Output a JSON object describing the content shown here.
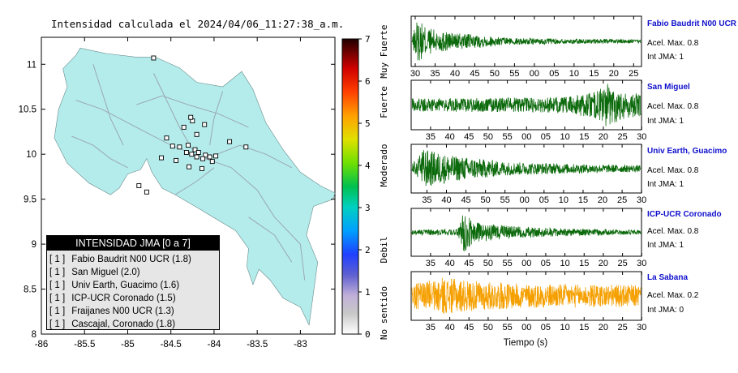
{
  "colors": {
    "land": "#b4ecec",
    "sea": "#ffffff",
    "roads": "#9aa8b0",
    "trace_green": "#0c6a0c",
    "trace_orange": "#f5a000",
    "station_name": "#1010cc"
  },
  "chart_data": [
    {
      "type": "map",
      "title": "Intensidad calculada el 2024/04/06_11:27:38_a.m.",
      "xlim": [
        -86,
        -82.6
      ],
      "ylim": [
        8,
        11.3
      ],
      "xticks": [
        -86,
        -85.5,
        -85,
        -84.5,
        -84,
        -83.5,
        -83
      ],
      "yticks": [
        8,
        8.5,
        9,
        9.5,
        10,
        10.5,
        11
      ],
      "stations": [
        {
          "lon": -84.25,
          "lat": 10.37
        },
        {
          "lon": -84.11,
          "lat": 10.33
        },
        {
          "lon": -84.2,
          "lat": 10.22
        },
        {
          "lon": -84.35,
          "lat": 10.3
        },
        {
          "lon": -84.55,
          "lat": 10.18
        },
        {
          "lon": -83.82,
          "lat": 10.14
        },
        {
          "lon": -83.63,
          "lat": 10.08
        },
        {
          "lon": -84.48,
          "lat": 10.09
        },
        {
          "lon": -84.4,
          "lat": 10.08
        },
        {
          "lon": -84.3,
          "lat": 10.1
        },
        {
          "lon": -84.22,
          "lat": 10.05
        },
        {
          "lon": -84.18,
          "lat": 10.02
        },
        {
          "lon": -84.1,
          "lat": 9.99
        },
        {
          "lon": -84.05,
          "lat": 9.97
        },
        {
          "lon": -84.02,
          "lat": 9.92
        },
        {
          "lon": -83.98,
          "lat": 9.98
        },
        {
          "lon": -84.13,
          "lat": 9.95
        },
        {
          "lon": -84.2,
          "lat": 9.97
        },
        {
          "lon": -84.26,
          "lat": 10.0
        },
        {
          "lon": -84.32,
          "lat": 10.02
        },
        {
          "lon": -84.44,
          "lat": 9.93
        },
        {
          "lon": -84.29,
          "lat": 9.86
        },
        {
          "lon": -84.14,
          "lat": 9.84
        },
        {
          "lon": -84.61,
          "lat": 9.96
        },
        {
          "lon": -84.87,
          "lat": 9.65
        },
        {
          "lon": -84.78,
          "lat": 9.58
        },
        {
          "lon": -84.27,
          "lat": 10.41
        },
        {
          "lon": -84.7,
          "lat": 11.07
        }
      ],
      "legend": {
        "header": "INTENSIDAD JMA [0 a 7]",
        "items": [
          {
            "jma": "[ 1 ]",
            "label": "Fabio Baudrit N00 UCR (1.8)"
          },
          {
            "jma": "[ 1 ]",
            "label": "San Miguel (2.0)"
          },
          {
            "jma": "[ 1 ]",
            "label": "Univ Earth, Guacimo (1.6)"
          },
          {
            "jma": "[ 1 ]",
            "label": "ICP-UCR Coronado (1.5)"
          },
          {
            "jma": "[ 1 ]",
            "label": "Fraijanes N00 UCR (1.3)"
          },
          {
            "jma": "[ 1 ]",
            "label": "Cascajal, Coronado (1.8)"
          }
        ]
      },
      "colorbar": {
        "ticks": [
          "0",
          "1",
          "2",
          "3",
          "4",
          "5",
          "6",
          "7"
        ],
        "category_labels": [
          "No sentido",
          "Debil",
          "Moderado",
          "Fuerte",
          "Muy Fuerte"
        ]
      }
    },
    {
      "type": "line",
      "xlabel": "Tiempo (s)",
      "panels": [
        {
          "name": "Fabio Baudrit N00 UCR",
          "accel": "Acel. Max. 0.8",
          "int": "Int JMA: 1",
          "color": "#0c6a0c",
          "tick_labels": [
            "30",
            "35",
            "40",
            "45",
            "50",
            "55",
            "00",
            "05",
            "10",
            "15",
            "20",
            "25"
          ],
          "tick_start": 30,
          "duration_s": 58,
          "envelope": [
            [
              0,
              0.05
            ],
            [
              1,
              0.95
            ],
            [
              5,
              0.55
            ],
            [
              12,
              0.35
            ],
            [
              25,
              0.15
            ],
            [
              58,
              0.08
            ]
          ]
        },
        {
          "name": "San Miguel",
          "accel": "Acel. Max. 0.8",
          "int": "Int JMA: 1",
          "color": "#0c6a0c",
          "tick_labels": [
            "35",
            "40",
            "45",
            "50",
            "55",
            "00",
            "05",
            "10",
            "15",
            "20",
            "25",
            "30"
          ],
          "tick_start": 31,
          "duration_s": 60,
          "envelope": [
            [
              0,
              0.3
            ],
            [
              10,
              0.3
            ],
            [
              40,
              0.35
            ],
            [
              48,
              0.6
            ],
            [
              51,
              0.98
            ],
            [
              56,
              0.6
            ],
            [
              60,
              0.5
            ]
          ]
        },
        {
          "name": "Univ Earth, Guacimo",
          "accel": "Acel. Max. 0.8",
          "int": "Int JMA: 1",
          "color": "#0c6a0c",
          "tick_labels": [
            "35",
            "40",
            "45",
            "50",
            "55",
            "00",
            "05",
            "10",
            "15",
            "20",
            "25",
            "30"
          ],
          "tick_start": 32,
          "duration_s": 59,
          "envelope": [
            [
              0,
              0.2
            ],
            [
              3,
              0.9
            ],
            [
              10,
              0.6
            ],
            [
              25,
              0.3
            ],
            [
              45,
              0.2
            ],
            [
              59,
              0.15
            ]
          ]
        },
        {
          "name": "ICP-UCR Coronado",
          "accel": "Acel. Max. 0.8",
          "int": "Int JMA: 1",
          "color": "#0c6a0c",
          "tick_labels": [
            "35",
            "40",
            "45",
            "50",
            "55",
            "00",
            "05",
            "10",
            "15",
            "20",
            "25",
            "30"
          ],
          "tick_start": 31,
          "duration_s": 60,
          "envelope": [
            [
              0,
              0.12
            ],
            [
              12,
              0.15
            ],
            [
              13.5,
              0.98
            ],
            [
              16,
              0.5
            ],
            [
              22,
              0.35
            ],
            [
              35,
              0.2
            ],
            [
              60,
              0.1
            ]
          ]
        },
        {
          "name": "La Sabana",
          "accel": "Acel. Max. 0.2",
          "int": "Int JMA: 0",
          "color": "#f5a000",
          "tick_labels": [
            "35",
            "40",
            "45",
            "50",
            "55",
            "00",
            "05",
            "10",
            "15",
            "20",
            "25",
            "30"
          ],
          "tick_start": 31,
          "duration_s": 60,
          "envelope": [
            [
              0,
              0.55
            ],
            [
              8,
              0.85
            ],
            [
              15,
              0.7
            ],
            [
              30,
              0.55
            ],
            [
              60,
              0.5
            ]
          ]
        }
      ]
    }
  ]
}
